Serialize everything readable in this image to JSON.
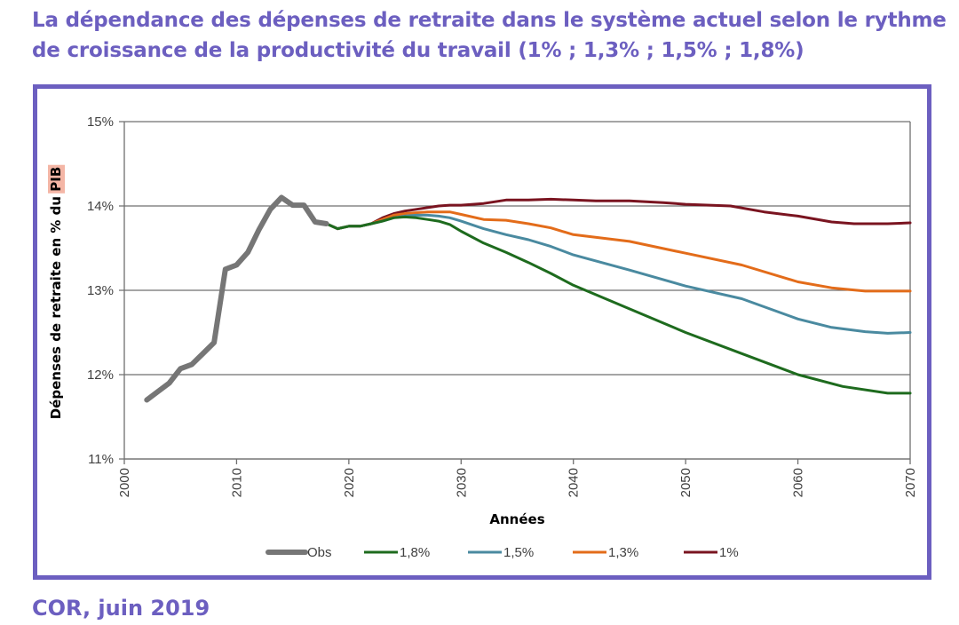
{
  "title": "La dépendance des dépenses de retraite dans le système actuel selon le rythme de croissance de la productivité du travail (1% ; 1,3% ; 1,5% ; 1,8%)",
  "source": "COR, juin 2019",
  "colors": {
    "accent": "#6c5fc0",
    "Obs": "#767676",
    "s18": "#1e6b1e",
    "s15": "#4a8aa0",
    "s13": "#e36c1a",
    "s1": "#7a1420",
    "pib_highlight": "#f4b6a6"
  },
  "chart_data": {
    "type": "line",
    "xlabel": "Années",
    "ylabel": "Dépenses de retraite en % du PIB",
    "ylabel_prefix": "Dépenses de retraite en % du ",
    "ylabel_highlight": "PIB",
    "xlim": [
      2000,
      2070
    ],
    "ylim": [
      11,
      15
    ],
    "x_ticks": [
      2000,
      2010,
      2020,
      2030,
      2040,
      2050,
      2060,
      2070
    ],
    "x_tick_labels": [
      "2000",
      "2010",
      "2020",
      "2030",
      "2040",
      "2050",
      "2060",
      "2070"
    ],
    "y_ticks": [
      11,
      12,
      13,
      14,
      15
    ],
    "y_tick_labels": [
      "11%",
      "12%",
      "13%",
      "14%",
      "15%"
    ],
    "grid": true,
    "legend_position": "bottom",
    "series": [
      {
        "name": "Obs",
        "color_key": "Obs",
        "x": [
          2002,
          2003,
          2004,
          2005,
          2006,
          2007,
          2008,
          2009,
          2010,
          2011,
          2012,
          2013,
          2014,
          2015,
          2016,
          2017,
          2018
        ],
        "values": [
          11.7,
          11.8,
          11.9,
          12.07,
          12.12,
          12.25,
          12.38,
          13.25,
          13.3,
          13.45,
          13.72,
          13.96,
          14.1,
          14.01,
          14.01,
          13.81,
          13.79
        ]
      },
      {
        "name": "1,8%",
        "color_key": "s18",
        "x": [
          2018,
          2019,
          2020,
          2021,
          2022,
          2023,
          2024,
          2025,
          2026,
          2027,
          2028,
          2029,
          2030,
          2032,
          2034,
          2036,
          2038,
          2040,
          2045,
          2050,
          2055,
          2060,
          2064,
          2068,
          2070
        ],
        "values": [
          13.79,
          13.73,
          13.76,
          13.76,
          13.79,
          13.82,
          13.86,
          13.87,
          13.86,
          13.84,
          13.82,
          13.78,
          13.7,
          13.56,
          13.45,
          13.33,
          13.2,
          13.06,
          12.78,
          12.5,
          12.25,
          12.0,
          11.86,
          11.78,
          11.78
        ]
      },
      {
        "name": "1,5%",
        "color_key": "s15",
        "x": [
          2018,
          2019,
          2020,
          2021,
          2022,
          2023,
          2024,
          2025,
          2026,
          2027,
          2028,
          2029,
          2030,
          2032,
          2034,
          2036,
          2038,
          2040,
          2045,
          2050,
          2055,
          2060,
          2063,
          2066,
          2068,
          2070
        ],
        "values": [
          13.79,
          13.73,
          13.76,
          13.76,
          13.79,
          13.82,
          13.86,
          13.88,
          13.89,
          13.89,
          13.88,
          13.86,
          13.82,
          13.73,
          13.66,
          13.6,
          13.52,
          13.42,
          13.24,
          13.05,
          12.9,
          12.66,
          12.56,
          12.51,
          12.49,
          12.5
        ]
      },
      {
        "name": "1,3%",
        "color_key": "s13",
        "x": [
          2018,
          2019,
          2020,
          2021,
          2022,
          2023,
          2024,
          2025,
          2026,
          2027,
          2028,
          2029,
          2030,
          2032,
          2034,
          2036,
          2038,
          2040,
          2045,
          2050,
          2055,
          2060,
          2063,
          2066,
          2070
        ],
        "values": [
          13.79,
          13.73,
          13.76,
          13.76,
          13.79,
          13.84,
          13.89,
          13.91,
          13.92,
          13.93,
          13.93,
          13.93,
          13.9,
          13.84,
          13.83,
          13.79,
          13.74,
          13.66,
          13.58,
          13.44,
          13.3,
          13.1,
          13.03,
          12.99,
          12.99
        ]
      },
      {
        "name": "1%",
        "color_key": "s1",
        "x": [
          2018,
          2019,
          2020,
          2021,
          2022,
          2023,
          2024,
          2025,
          2026,
          2027,
          2028,
          2029,
          2030,
          2032,
          2034,
          2036,
          2038,
          2040,
          2042,
          2045,
          2048,
          2050,
          2054,
          2057,
          2060,
          2063,
          2065,
          2068,
          2070
        ],
        "values": [
          13.79,
          13.73,
          13.76,
          13.76,
          13.79,
          13.86,
          13.91,
          13.94,
          13.96,
          13.98,
          14.0,
          14.01,
          14.01,
          14.03,
          14.07,
          14.07,
          14.08,
          14.07,
          14.06,
          14.06,
          14.04,
          14.02,
          14.0,
          13.93,
          13.88,
          13.81,
          13.79,
          13.79,
          13.8
        ]
      }
    ]
  }
}
